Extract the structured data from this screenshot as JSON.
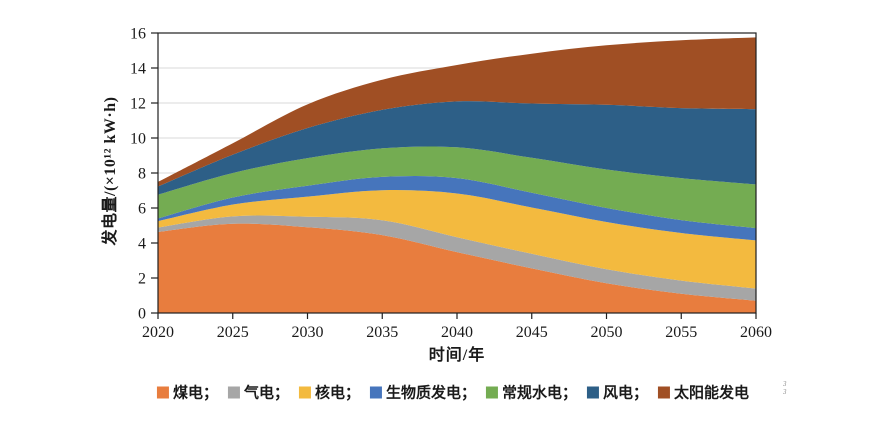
{
  "corner_mark": "3\n3",
  "legend": {
    "separator": "；"
  },
  "chart_data": {
    "type": "area",
    "stacked": true,
    "title": "",
    "xlabel": "时间/年",
    "ylabel": "发电量/(×10¹² kW·h)",
    "x": [
      2020,
      2025,
      2030,
      2035,
      2040,
      2045,
      2050,
      2055,
      2060
    ],
    "xlim": [
      2020,
      2060
    ],
    "ylim": [
      0,
      16
    ],
    "ytick_step": 2,
    "grid": "horizontal-light",
    "legend_position": "bottom",
    "axis_color": "#1f1f1f",
    "grid_color": "#d9d9d9",
    "series": [
      {
        "key": "coal",
        "name": "煤电",
        "color": "#E87D3E",
        "values": [
          4.63,
          5.1,
          4.9,
          4.45,
          3.48,
          2.55,
          1.7,
          1.1,
          0.7
        ]
      },
      {
        "key": "gas",
        "name": "气电",
        "color": "#A6A6A6",
        "values": [
          0.25,
          0.42,
          0.6,
          0.85,
          0.85,
          0.83,
          0.8,
          0.75,
          0.7
        ]
      },
      {
        "key": "nuclear",
        "name": "核电",
        "color": "#F3BA3F",
        "values": [
          0.37,
          0.68,
          1.15,
          1.72,
          2.5,
          2.65,
          2.7,
          2.72,
          2.75
        ]
      },
      {
        "key": "biomass",
        "name": "生物质发电",
        "color": "#4675BC",
        "values": [
          0.15,
          0.4,
          0.62,
          0.76,
          0.88,
          0.84,
          0.8,
          0.74,
          0.7
        ]
      },
      {
        "key": "hydro",
        "name": "常规水电",
        "color": "#74AC52",
        "values": [
          1.36,
          1.4,
          1.58,
          1.63,
          1.76,
          2.0,
          2.2,
          2.4,
          2.5
        ]
      },
      {
        "key": "wind",
        "name": "风电",
        "color": "#2D5F87",
        "values": [
          0.47,
          1.05,
          1.72,
          2.2,
          2.62,
          3.1,
          3.7,
          4.0,
          4.3
        ]
      },
      {
        "key": "solar",
        "name": "太阳能发电",
        "color": "#A04F24",
        "values": [
          0.26,
          0.65,
          1.35,
          1.72,
          2.08,
          2.85,
          3.4,
          3.87,
          4.1
        ]
      }
    ]
  }
}
